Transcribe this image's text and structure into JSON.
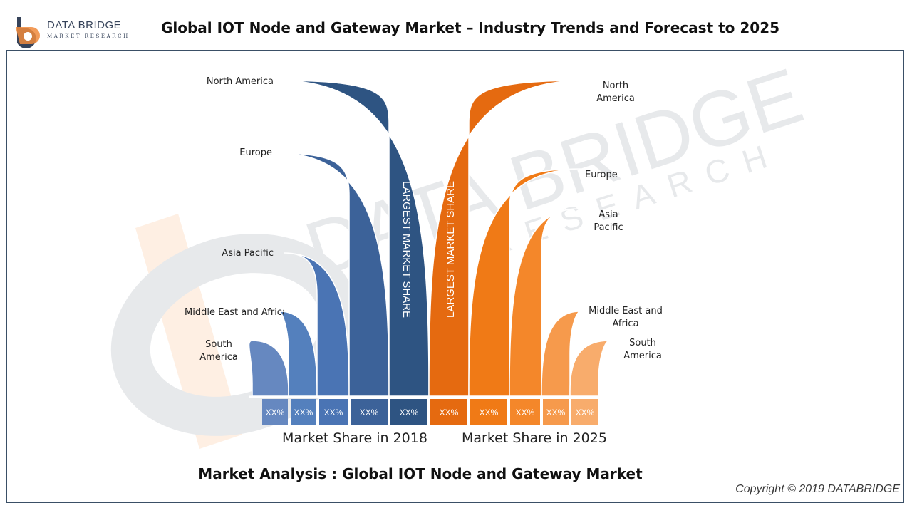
{
  "header": {
    "logo_name": "DATA BRIDGE",
    "logo_sub": "MARKET RESEARCH",
    "title": "Global IOT Node and Gateway Market – Industry Trends and Forecast to 2025"
  },
  "watermark": {
    "name": "DATA BRIDGE",
    "sub": "RESEARCH"
  },
  "diagram": {
    "left_group_label": "Market Share in 2018",
    "right_group_label": "Market Share in 2025",
    "left_highlight": "LARGEST MARKET SHARE",
    "right_highlight": "LARGEST MARKET SHARE",
    "left_regions": [
      {
        "name": "South America",
        "line1": "South",
        "line2": "America",
        "share": "XX%",
        "color": "#6688c0"
      },
      {
        "name": "Middle East and Africa",
        "line1": "Middle East and Africa",
        "share": "XX%",
        "color": "#5480bd"
      },
      {
        "name": "Asia Pacific",
        "line1": "Asia Pacific",
        "share": "XX%",
        "color": "#4a74b4"
      },
      {
        "name": "Europe",
        "line1": "Europe",
        "share": "XX%",
        "color": "#3c6299"
      },
      {
        "name": "North America",
        "line1": "North America",
        "share": "XX%",
        "color": "#2e5482"
      }
    ],
    "right_regions": [
      {
        "name": "North America",
        "line1": "North",
        "line2": "America",
        "share": "XX%",
        "color": "#e56a10"
      },
      {
        "name": "Europe",
        "line1": "Europe",
        "share": "XX%",
        "color": "#f07a16"
      },
      {
        "name": "Asia Pacific",
        "line1": "Asia",
        "line2": "Pacific",
        "share": "XX%",
        "color": "#f4872a"
      },
      {
        "name": "Middle East and Africa",
        "line1": "Middle East and",
        "line2": "Africa",
        "share": "XX%",
        "color": "#f69a4c"
      },
      {
        "name": "South America",
        "line1": "South",
        "line2": "America",
        "share": "XX%",
        "color": "#f8ac6c"
      }
    ]
  },
  "footer": {
    "subtitle": "Market Analysis : Global IOT Node and Gateway Market",
    "copyright": "Copyright © 2019 DATABRIDGE"
  }
}
